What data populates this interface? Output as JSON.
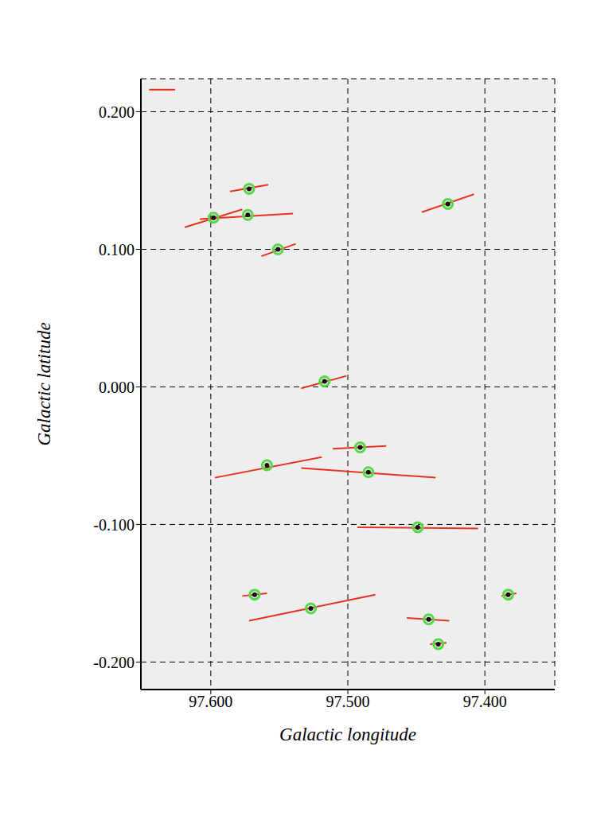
{
  "chart_data": {
    "type": "scatter",
    "xlabel": "Galactic longitude",
    "ylabel": "Galactic latitude",
    "xlim": [
      97.651,
      97.349
    ],
    "ylim": [
      -0.22,
      0.224
    ],
    "xticks": [
      {
        "value": 97.6,
        "label": "97.600"
      },
      {
        "value": 97.5,
        "label": "97.500"
      },
      {
        "value": 97.4,
        "label": "97.400"
      }
    ],
    "yticks": [
      {
        "value": -0.2,
        "label": "-0.200"
      },
      {
        "value": -0.1,
        "label": "-0.100"
      },
      {
        "value": 0,
        "label": "0.000"
      },
      {
        "value": 0.1,
        "label": "0.100"
      },
      {
        "value": 0.2,
        "label": "0.200"
      }
    ],
    "grid": true,
    "series": [
      {
        "type": "scatter",
        "color": "#55d94a",
        "marker": "circle",
        "x": [
          97.572,
          97.573,
          97.598,
          97.551,
          97.427,
          97.517,
          97.491,
          97.559,
          97.485,
          97.449,
          97.568,
          97.527,
          97.441,
          97.434,
          97.383
        ],
        "y": [
          0.144,
          0.125,
          0.123,
          0.1,
          0.133,
          0.004,
          -0.044,
          -0.057,
          -0.062,
          -0.102,
          -0.151,
          -0.161,
          -0.169,
          -0.187,
          -0.151
        ]
      },
      {
        "type": "segments",
        "color": "#e8321e",
        "line_style": "solid",
        "segments": [
          [
            97.586,
            0.142,
            97.558,
            0.147
          ],
          [
            97.608,
            0.122,
            97.54,
            0.126
          ],
          [
            97.619,
            0.116,
            97.577,
            0.129
          ],
          [
            97.563,
            0.095,
            97.538,
            0.104
          ],
          [
            97.446,
            0.127,
            97.408,
            0.14
          ],
          [
            97.534,
            -0.001,
            97.501,
            0.008
          ],
          [
            97.511,
            -0.045,
            97.472,
            -0.043
          ],
          [
            97.597,
            -0.066,
            97.519,
            -0.051
          ],
          [
            97.534,
            -0.059,
            97.436,
            -0.066
          ],
          [
            97.493,
            -0.102,
            97.405,
            -0.103
          ],
          [
            97.577,
            -0.152,
            97.559,
            -0.15
          ],
          [
            97.572,
            -0.17,
            97.48,
            -0.151
          ],
          [
            97.457,
            -0.168,
            97.426,
            -0.17
          ],
          [
            97.44,
            -0.187,
            97.428,
            -0.186
          ],
          [
            97.388,
            -0.152,
            97.377,
            -0.15
          ],
          [
            97.645,
            0.216,
            97.626,
            0.216
          ]
        ]
      }
    ]
  }
}
